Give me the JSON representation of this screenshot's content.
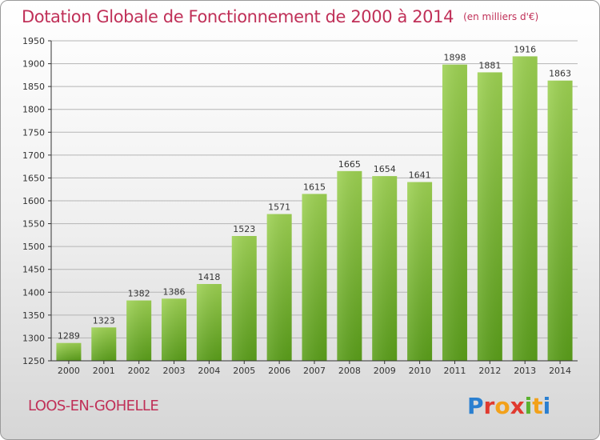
{
  "title": "Dotation Globale de Fonctionnement de 2000 à 2014",
  "unit": "(en milliers d'€)",
  "commune": "LOOS-EN-GOHELLE",
  "logo": {
    "text": "Proxiti",
    "colors": [
      "#2a7fd0",
      "#e03a2f",
      "#f2a11a",
      "#e03a2f",
      "#5ab12e",
      "#f2a11a",
      "#2a7fd0"
    ]
  },
  "colors": {
    "title": "#c03058",
    "bar_top": "#9dd152",
    "bar_bottom": "#5a9e1a",
    "grid": "#b5b5b5"
  },
  "chart_data": {
    "type": "bar",
    "categories": [
      "2000",
      "2001",
      "2002",
      "2003",
      "2004",
      "2005",
      "2006",
      "2007",
      "2008",
      "2009",
      "2010",
      "2011",
      "2012",
      "2013",
      "2014"
    ],
    "values": [
      1289,
      1323,
      1382,
      1386,
      1418,
      1523,
      1571,
      1615,
      1665,
      1654,
      1641,
      1898,
      1881,
      1916,
      1863
    ],
    "ylim": [
      1250,
      1950
    ],
    "yticks": [
      1250,
      1300,
      1350,
      1400,
      1450,
      1500,
      1550,
      1600,
      1650,
      1700,
      1750,
      1800,
      1850,
      1900,
      1950
    ],
    "grid": "horizontal",
    "data_labels": true
  }
}
